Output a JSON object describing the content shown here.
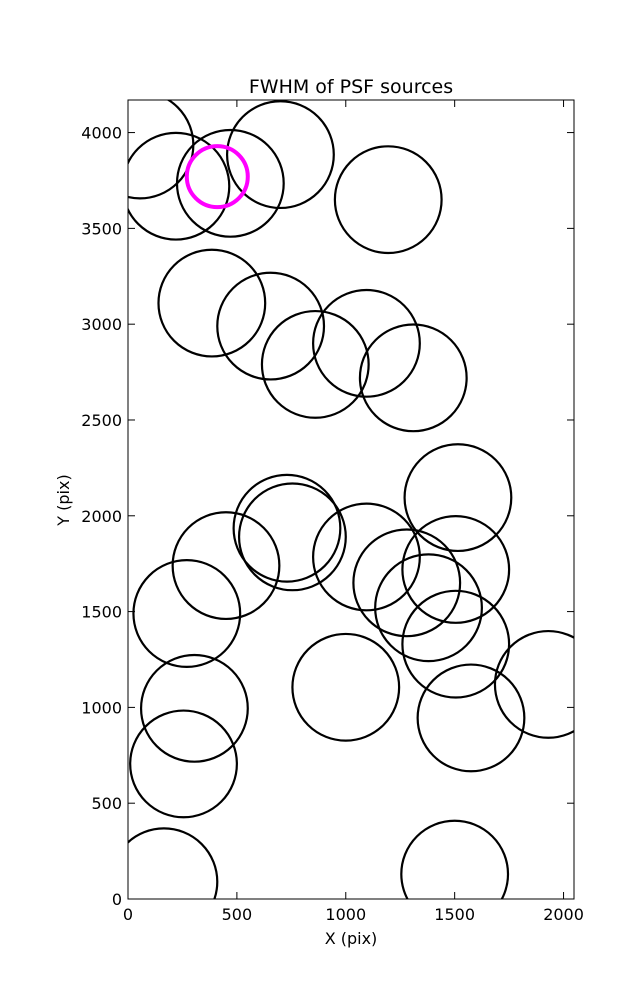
{
  "chart_data": {
    "type": "scatter",
    "marker": "open-circle",
    "title": "FWHM of PSF sources",
    "xlabel": "X (pix)",
    "ylabel": "Y (pix)",
    "xlim": [
      0,
      2048
    ],
    "ylim": [
      0,
      4170
    ],
    "xticks": [
      0,
      500,
      1000,
      1500,
      2000
    ],
    "yticks": [
      0,
      500,
      1000,
      1500,
      2000,
      2500,
      3000,
      3500,
      4000
    ],
    "grid": false,
    "circle_radius_pix": 245,
    "series": [
      {
        "color": "#000000",
        "points": [
          {
            "x": 55,
            "y": 3935
          },
          {
            "x": 220,
            "y": 3720
          },
          {
            "x": 470,
            "y": 3735
          },
          {
            "x": 700,
            "y": 3885
          },
          {
            "x": 1195,
            "y": 3650
          },
          {
            "x": 385,
            "y": 3110
          },
          {
            "x": 655,
            "y": 2990
          },
          {
            "x": 860,
            "y": 2790
          },
          {
            "x": 1095,
            "y": 2900
          },
          {
            "x": 1310,
            "y": 2720
          },
          {
            "x": 1515,
            "y": 2095
          },
          {
            "x": 730,
            "y": 1935
          },
          {
            "x": 755,
            "y": 1890
          },
          {
            "x": 450,
            "y": 1740
          },
          {
            "x": 1095,
            "y": 1785
          },
          {
            "x": 1505,
            "y": 1720
          },
          {
            "x": 1280,
            "y": 1650
          },
          {
            "x": 1380,
            "y": 1520
          },
          {
            "x": 270,
            "y": 1490
          },
          {
            "x": 1505,
            "y": 1330
          },
          {
            "x": 1000,
            "y": 1105
          },
          {
            "x": 1930,
            "y": 1120
          },
          {
            "x": 305,
            "y": 995
          },
          {
            "x": 1575,
            "y": 945
          },
          {
            "x": 255,
            "y": 705
          },
          {
            "x": 165,
            "y": 90
          },
          {
            "x": 1500,
            "y": 130
          }
        ]
      },
      {
        "color": "#ff00ff",
        "highlight": true,
        "radius_pix": 140,
        "points": [
          {
            "x": 410,
            "y": 3770
          }
        ]
      }
    ]
  }
}
